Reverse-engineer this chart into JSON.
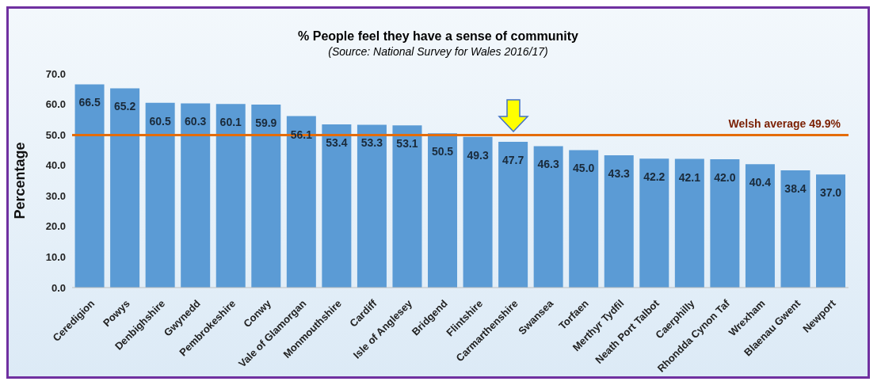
{
  "chart_data": {
    "type": "bar",
    "title": "% People feel they have a sense of community",
    "subtitle": "(Source: National Survey for Wales 2016/17)",
    "ylabel": "Percentage",
    "categories": [
      "Ceredigion",
      "Powys",
      "Denbighshire",
      "Gwynedd",
      "Pembrokeshire",
      "Conwy",
      "Vale of Glamorgan",
      "Monmouthshire",
      "Cardiff",
      "Isle of Anglesey",
      "Bridgend",
      "Flintshire",
      "Carmarthenshire",
      "Swansea",
      "Torfaen",
      "Merthyr Tydfil",
      "Neath Port Talbot",
      "Caerphilly",
      "Rhondda Cynon Taf",
      "Wrexham",
      "Blaenau Gwent",
      "Newport"
    ],
    "values": [
      66.5,
      65.2,
      60.5,
      60.3,
      60.1,
      59.9,
      56.1,
      53.4,
      53.3,
      53.1,
      50.5,
      49.3,
      47.7,
      46.3,
      45.0,
      43.3,
      42.2,
      42.1,
      42.0,
      40.4,
      38.4,
      37.0
    ],
    "value_labels": [
      "66.5",
      "65.2",
      "60.5",
      "60.3",
      "60.1",
      "59.9",
      "56.1",
      "53.4",
      "53.3",
      "53.1",
      "50.5",
      "49.3",
      "47.7",
      "46.3",
      "45.0",
      "43.3",
      "42.2",
      "42.1",
      "42.0",
      "40.4",
      "38.4",
      "37.0"
    ],
    "color": "#5b9bd5",
    "ylim": [
      0,
      70
    ],
    "yticks": [
      {
        "value": 0,
        "label": "0.0"
      },
      {
        "value": 10,
        "label": "10.0"
      },
      {
        "value": 20,
        "label": "20.0"
      },
      {
        "value": 30,
        "label": "30.0"
      },
      {
        "value": 40,
        "label": "40.0"
      },
      {
        "value": 50,
        "label": "50.0"
      },
      {
        "value": 60,
        "label": "60.0"
      },
      {
        "value": 70,
        "label": "70.0"
      }
    ],
    "ref_lines": [
      {
        "axis": "y",
        "value": 49.9,
        "label": "Welsh average 49.9%",
        "color": "#e46c0a"
      }
    ],
    "grid": false,
    "legend": false
  }
}
